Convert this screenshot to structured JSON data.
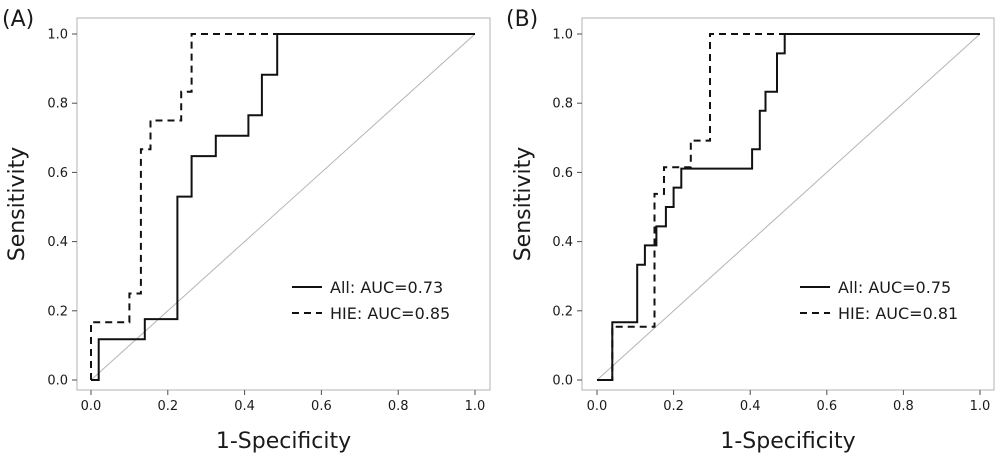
{
  "chart_data": [
    {
      "type": "line",
      "panel_label": "(A)",
      "xlabel": "1-Specificity",
      "ylabel": "Sensitivity",
      "xlim": [
        0,
        1
      ],
      "ylim": [
        0,
        1
      ],
      "x_ticks": [
        "0.0",
        "0.2",
        "0.4",
        "0.6",
        "0.8",
        "1.0"
      ],
      "y_ticks": [
        "0.0",
        "0.2",
        "0.4",
        "0.6",
        "0.8",
        "1.0"
      ],
      "grid": false,
      "legend_position": "bottom-right",
      "reference_line": true,
      "series": [
        {
          "name": "All: AUC=0.73",
          "style": "solid",
          "points": [
            [
              0,
              0
            ],
            [
              0.02,
              0
            ],
            [
              0.02,
              0.118
            ],
            [
              0.14,
              0.118
            ],
            [
              0.14,
              0.176
            ],
            [
              0.225,
              0.176
            ],
            [
              0.225,
              0.53
            ],
            [
              0.262,
              0.53
            ],
            [
              0.262,
              0.647
            ],
            [
              0.325,
              0.647
            ],
            [
              0.325,
              0.706
            ],
            [
              0.41,
              0.706
            ],
            [
              0.41,
              0.765
            ],
            [
              0.445,
              0.765
            ],
            [
              0.445,
              0.882
            ],
            [
              0.485,
              0.882
            ],
            [
              0.485,
              1.0
            ],
            [
              1.0,
              1.0
            ]
          ]
        },
        {
          "name": "HIE: AUC=0.85",
          "style": "dashed",
          "points": [
            [
              0,
              0
            ],
            [
              0,
              0.167
            ],
            [
              0.1,
              0.167
            ],
            [
              0.1,
              0.25
            ],
            [
              0.13,
              0.25
            ],
            [
              0.13,
              0.667
            ],
            [
              0.155,
              0.667
            ],
            [
              0.155,
              0.75
            ],
            [
              0.235,
              0.75
            ],
            [
              0.235,
              0.833
            ],
            [
              0.262,
              0.833
            ],
            [
              0.262,
              1.0
            ],
            [
              1.0,
              1.0
            ]
          ]
        }
      ]
    },
    {
      "type": "line",
      "panel_label": "(B)",
      "xlabel": "1-Specificity",
      "ylabel": "Sensitivity",
      "xlim": [
        0,
        1
      ],
      "ylim": [
        0,
        1
      ],
      "x_ticks": [
        "0.0",
        "0.2",
        "0.4",
        "0.6",
        "0.8",
        "1.0"
      ],
      "y_ticks": [
        "0.0",
        "0.2",
        "0.4",
        "0.6",
        "0.8",
        "1.0"
      ],
      "grid": false,
      "legend_position": "bottom-right",
      "reference_line": true,
      "series": [
        {
          "name": "All: AUC=0.75",
          "style": "solid",
          "points": [
            [
              0,
              0
            ],
            [
              0.04,
              0
            ],
            [
              0.04,
              0.167
            ],
            [
              0.105,
              0.167
            ],
            [
              0.105,
              0.333
            ],
            [
              0.125,
              0.333
            ],
            [
              0.125,
              0.389
            ],
            [
              0.155,
              0.389
            ],
            [
              0.155,
              0.444
            ],
            [
              0.18,
              0.444
            ],
            [
              0.18,
              0.5
            ],
            [
              0.2,
              0.5
            ],
            [
              0.2,
              0.556
            ],
            [
              0.22,
              0.556
            ],
            [
              0.22,
              0.611
            ],
            [
              0.405,
              0.611
            ],
            [
              0.405,
              0.667
            ],
            [
              0.425,
              0.667
            ],
            [
              0.425,
              0.778
            ],
            [
              0.44,
              0.778
            ],
            [
              0.44,
              0.833
            ],
            [
              0.47,
              0.833
            ],
            [
              0.47,
              0.944
            ],
            [
              0.49,
              0.944
            ],
            [
              0.49,
              1.0
            ],
            [
              1.0,
              1.0
            ]
          ]
        },
        {
          "name": "HIE: AUC=0.81",
          "style": "dashed",
          "points": [
            [
              0,
              0
            ],
            [
              0.04,
              0
            ],
            [
              0.04,
              0.154
            ],
            [
              0.15,
              0.154
            ],
            [
              0.15,
              0.538
            ],
            [
              0.175,
              0.538
            ],
            [
              0.175,
              0.615
            ],
            [
              0.245,
              0.615
            ],
            [
              0.245,
              0.692
            ],
            [
              0.295,
              0.692
            ],
            [
              0.295,
              1.0
            ],
            [
              1.0,
              1.0
            ]
          ]
        }
      ]
    }
  ]
}
